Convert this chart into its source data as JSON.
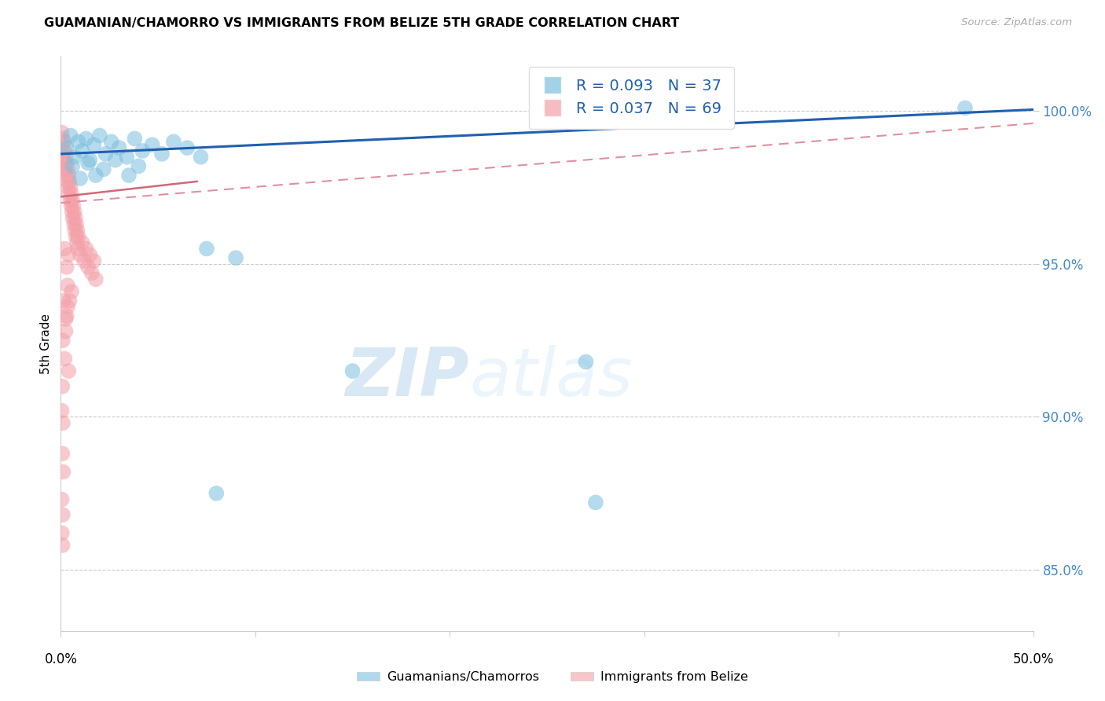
{
  "title": "GUAMANIAN/CHAMORRO VS IMMIGRANTS FROM BELIZE 5TH GRADE CORRELATION CHART",
  "source": "Source: ZipAtlas.com",
  "ylabel": "5th Grade",
  "yticks": [
    85.0,
    90.0,
    95.0,
    100.0
  ],
  "ytick_labels": [
    "85.0%",
    "90.0%",
    "95.0%",
    "100.0%"
  ],
  "xlim": [
    0.0,
    50.0
  ],
  "ylim": [
    83.0,
    101.8
  ],
  "legend_label_blue": "Guamanians/Chamorros",
  "legend_label_pink": "Immigrants from Belize",
  "blue_color": "#7bbfdd",
  "pink_color": "#f4a0a8",
  "blue_line_color": "#2060b0",
  "pink_line_color": "#d06878",
  "pink_dashed_color": "#e090a0",
  "blue_trend": [
    0.0,
    98.6,
    50.0,
    100.05
  ],
  "pink_solid_trend": [
    0.0,
    97.2,
    7.0,
    97.7
  ],
  "pink_dashed_trend": [
    0.0,
    97.0,
    50.0,
    99.6
  ],
  "blue_scatter": [
    [
      0.3,
      98.8
    ],
    [
      0.5,
      99.2
    ],
    [
      0.7,
      98.5
    ],
    [
      0.9,
      99.0
    ],
    [
      1.1,
      98.7
    ],
    [
      1.3,
      99.1
    ],
    [
      1.5,
      98.4
    ],
    [
      1.7,
      98.9
    ],
    [
      2.0,
      99.2
    ],
    [
      2.3,
      98.6
    ],
    [
      2.6,
      99.0
    ],
    [
      3.0,
      98.8
    ],
    [
      3.4,
      98.5
    ],
    [
      3.8,
      99.1
    ],
    [
      4.2,
      98.7
    ],
    [
      4.7,
      98.9
    ],
    [
      5.2,
      98.6
    ],
    [
      5.8,
      99.0
    ],
    [
      6.5,
      98.8
    ],
    [
      7.2,
      98.5
    ],
    [
      0.6,
      98.2
    ],
    [
      1.0,
      97.8
    ],
    [
      1.4,
      98.3
    ],
    [
      1.8,
      97.9
    ],
    [
      2.2,
      98.1
    ],
    [
      2.8,
      98.4
    ],
    [
      3.5,
      97.9
    ],
    [
      4.0,
      98.2
    ],
    [
      7.5,
      95.5
    ],
    [
      9.0,
      95.2
    ],
    [
      15.0,
      91.5
    ],
    [
      27.0,
      91.8
    ],
    [
      8.0,
      87.5
    ],
    [
      27.5,
      87.2
    ],
    [
      46.5,
      100.1
    ]
  ],
  "pink_scatter": [
    [
      0.05,
      99.3
    ],
    [
      0.08,
      98.8
    ],
    [
      0.1,
      99.1
    ],
    [
      0.12,
      98.5
    ],
    [
      0.15,
      99.0
    ],
    [
      0.18,
      98.3
    ],
    [
      0.2,
      98.7
    ],
    [
      0.22,
      98.1
    ],
    [
      0.25,
      98.5
    ],
    [
      0.28,
      97.9
    ],
    [
      0.3,
      98.3
    ],
    [
      0.33,
      97.7
    ],
    [
      0.35,
      98.1
    ],
    [
      0.38,
      97.5
    ],
    [
      0.4,
      97.9
    ],
    [
      0.42,
      97.3
    ],
    [
      0.45,
      97.7
    ],
    [
      0.48,
      97.1
    ],
    [
      0.5,
      97.5
    ],
    [
      0.53,
      96.9
    ],
    [
      0.55,
      97.3
    ],
    [
      0.58,
      96.7
    ],
    [
      0.6,
      97.1
    ],
    [
      0.62,
      96.5
    ],
    [
      0.65,
      96.9
    ],
    [
      0.68,
      96.3
    ],
    [
      0.7,
      96.7
    ],
    [
      0.72,
      96.1
    ],
    [
      0.75,
      96.5
    ],
    [
      0.78,
      95.9
    ],
    [
      0.8,
      96.3
    ],
    [
      0.83,
      95.7
    ],
    [
      0.85,
      96.1
    ],
    [
      0.88,
      95.5
    ],
    [
      0.9,
      95.9
    ],
    [
      1.0,
      95.3
    ],
    [
      1.1,
      95.7
    ],
    [
      1.2,
      95.1
    ],
    [
      1.3,
      95.5
    ],
    [
      1.4,
      94.9
    ],
    [
      1.5,
      95.3
    ],
    [
      1.6,
      94.7
    ],
    [
      1.7,
      95.1
    ],
    [
      1.8,
      94.5
    ],
    [
      0.2,
      95.5
    ],
    [
      0.3,
      94.9
    ],
    [
      0.4,
      95.3
    ],
    [
      0.15,
      93.8
    ],
    [
      0.25,
      93.2
    ],
    [
      0.35,
      93.6
    ],
    [
      0.1,
      92.5
    ],
    [
      0.2,
      91.9
    ],
    [
      0.08,
      91.0
    ],
    [
      0.05,
      90.2
    ],
    [
      0.1,
      89.8
    ],
    [
      0.08,
      88.8
    ],
    [
      0.12,
      88.2
    ],
    [
      0.05,
      87.3
    ],
    [
      0.1,
      86.8
    ],
    [
      0.06,
      86.2
    ],
    [
      0.09,
      85.8
    ],
    [
      0.35,
      94.3
    ],
    [
      0.45,
      93.8
    ],
    [
      0.55,
      94.1
    ],
    [
      0.25,
      92.8
    ],
    [
      0.3,
      93.3
    ],
    [
      0.4,
      91.5
    ]
  ]
}
